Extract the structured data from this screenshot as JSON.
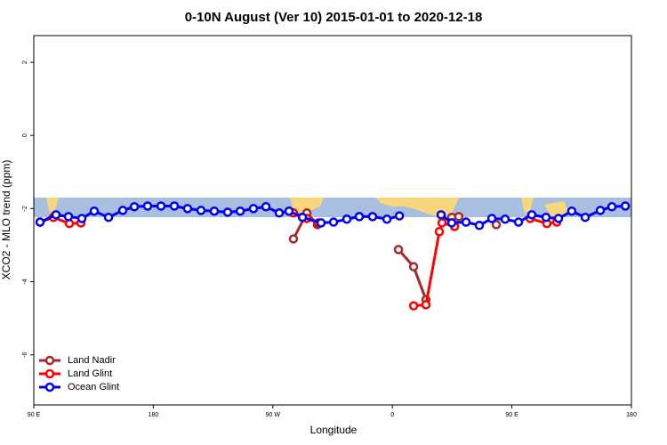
{
  "chart_data": {
    "type": "line",
    "title": "0-10N August (Ver 10)   2015-01-01 to 2020-12-18",
    "x_label": "Longitude",
    "y_label": "XCO2 - MLO trend (ppm)",
    "xlim": [
      90,
      540
    ],
    "ylim": [
      -7.37,
      2.73
    ],
    "xticks": [
      {
        "value": 90,
        "label": "90 E"
      },
      {
        "value": 180,
        "label": "180"
      },
      {
        "value": 270,
        "label": "90 W"
      },
      {
        "value": 360,
        "label": "0"
      },
      {
        "value": 450,
        "label": "90 E"
      },
      {
        "value": 540,
        "label": "180"
      }
    ],
    "yticks": [
      -6,
      -4,
      -2,
      0,
      2
    ],
    "legend": "bottom-left",
    "series": [
      {
        "name": "Land Nadir",
        "color": "#a52a2a",
        "x": [
          285.5,
          295.6,
          303.6,
          null,
          364.6,
          376,
          385.3,
          null,
          404.7,
          410,
          null,
          438.2
        ],
        "values": [
          -2.83,
          -2.12,
          -2.44,
          null,
          -3.12,
          -3.59,
          -4.49,
          null,
          -2.24,
          -2.22,
          null,
          -2.44
        ]
      },
      {
        "name": "Land Glint",
        "color": "#ff0000",
        "x": [
          94.7,
          104.7,
          116.8,
          125.5,
          null,
          285.5,
          295.6,
          304.3,
          null,
          376,
          385.3,
          395.4,
          397.4,
          406.8,
          null,
          463.7,
          476.4,
          483.8
        ],
        "values": [
          -2.37,
          -2.24,
          -2.41,
          -2.39,
          null,
          -2.12,
          -2.27,
          -2.39,
          null,
          -4.66,
          -4.63,
          -2.63,
          -2.39,
          -2.49,
          null,
          -2.27,
          -2.41,
          -2.37
        ]
      },
      {
        "name": "Ocean Glint",
        "color": "#0000ee",
        "x": [
          94.7,
          106.7,
          116.1,
          126.2,
          135.5,
          146.3,
          157.0,
          165.7,
          175.7,
          185.8,
          195.8,
          205.8,
          215.9,
          225.9,
          236.0,
          245.4,
          255.4,
          264.8,
          274.8,
          282.2,
          292.3,
          306.3,
          315.7,
          325.7,
          335.1,
          345.1,
          355.9,
          365.3,
          null,
          396.7,
          404.7,
          415.5,
          425.5,
          434.9,
          444.9,
          455.0,
          465.0,
          475.7,
          485.1,
          495.1,
          505.2,
          516.6,
          525.3,
          535.4
        ],
        "values": [
          -2.37,
          -2.17,
          -2.22,
          -2.27,
          -2.07,
          -2.24,
          -2.05,
          -1.95,
          -1.93,
          -1.93,
          -1.93,
          -2.0,
          -2.05,
          -2.07,
          -2.1,
          -2.07,
          -2.0,
          -1.95,
          -2.12,
          -2.07,
          -2.24,
          -2.39,
          -2.37,
          -2.29,
          -2.22,
          -2.22,
          -2.29,
          -2.2,
          null,
          -2.17,
          -2.39,
          -2.37,
          -2.46,
          -2.27,
          -2.29,
          -2.37,
          -2.17,
          -2.24,
          -2.27,
          -2.07,
          -2.24,
          -2.05,
          -1.95,
          -1.93
        ]
      }
    ]
  }
}
